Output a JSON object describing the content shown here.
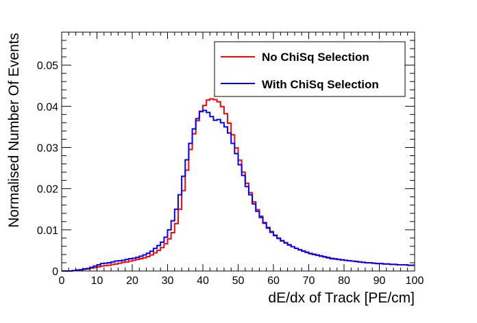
{
  "chart_data": {
    "type": "line",
    "title": "",
    "xlabel": "dE/dx of Track [PE/cm]",
    "ylabel": "Normalised Number Of Events",
    "xlim": [
      0,
      100
    ],
    "ylim": [
      0,
      0.058
    ],
    "x_ticks": [
      "0",
      "10",
      "20",
      "30",
      "40",
      "50",
      "60",
      "70",
      "80",
      "90",
      "100"
    ],
    "y_ticks": [
      "0",
      "0.01",
      "0.02",
      "0.03",
      "0.04",
      "0.05"
    ],
    "bin_width": 1,
    "grid": false,
    "legend_position": "top-right",
    "x": [
      0,
      1,
      2,
      3,
      4,
      5,
      6,
      7,
      8,
      9,
      10,
      11,
      12,
      13,
      14,
      15,
      16,
      17,
      18,
      19,
      20,
      21,
      22,
      23,
      24,
      25,
      26,
      27,
      28,
      29,
      30,
      31,
      32,
      33,
      34,
      35,
      36,
      37,
      38,
      39,
      40,
      41,
      42,
      43,
      44,
      45,
      46,
      47,
      48,
      49,
      50,
      51,
      52,
      53,
      54,
      55,
      56,
      57,
      58,
      59,
      60,
      61,
      62,
      63,
      64,
      65,
      66,
      67,
      68,
      69,
      70,
      71,
      72,
      73,
      74,
      75,
      76,
      77,
      78,
      79,
      80,
      81,
      82,
      83,
      84,
      85,
      86,
      87,
      88,
      89,
      90,
      91,
      92,
      93,
      94,
      95,
      96,
      97,
      98,
      99
    ],
    "series": [
      {
        "name": "No ChiSq Selection",
        "color": "#ff0000",
        "style": "step",
        "values": [
          0,
          0,
          0,
          0.0001,
          0.0002,
          0.0003,
          0.0004,
          0.0005,
          0.0007,
          0.0008,
          0.001,
          0.0012,
          0.0013,
          0.0014,
          0.0016,
          0.0017,
          0.0019,
          0.0021,
          0.0022,
          0.0024,
          0.0026,
          0.0028,
          0.003,
          0.0032,
          0.0035,
          0.0039,
          0.0044,
          0.005,
          0.0057,
          0.0066,
          0.0078,
          0.0093,
          0.0115,
          0.015,
          0.0195,
          0.0245,
          0.0295,
          0.0333,
          0.0365,
          0.0388,
          0.0402,
          0.0415,
          0.0418,
          0.0416,
          0.0411,
          0.0399,
          0.0382,
          0.0359,
          0.0331,
          0.0299,
          0.0269,
          0.024,
          0.0213,
          0.019,
          0.0168,
          0.0149,
          0.0133,
          0.0118,
          0.0106,
          0.0096,
          0.0087,
          0.008,
          0.0074,
          0.0069,
          0.0064,
          0.0059,
          0.0055,
          0.0052,
          0.0049,
          0.0046,
          0.0043,
          0.0041,
          0.0039,
          0.0037,
          0.0035,
          0.0033,
          0.0031,
          0.003,
          0.0028,
          0.0027,
          0.0026,
          0.0025,
          0.0024,
          0.0023,
          0.0022,
          0.0021,
          0.002,
          0.002,
          0.0019,
          0.0018,
          0.0018,
          0.0017,
          0.0017,
          0.0016,
          0.0016,
          0.0015,
          0.0015,
          0.0015,
          0.0014,
          0.0014
        ]
      },
      {
        "name": "With ChiSq Selection",
        "color": "#0000ff",
        "style": "step",
        "values": [
          0,
          0,
          0,
          0.0001,
          0.0002,
          0.0003,
          0.0005,
          0.0006,
          0.0009,
          0.0012,
          0.0015,
          0.0018,
          0.0019,
          0.002,
          0.0022,
          0.0024,
          0.0025,
          0.0026,
          0.0028,
          0.003,
          0.0031,
          0.0033,
          0.0036,
          0.0039,
          0.0043,
          0.0048,
          0.0055,
          0.0062,
          0.007,
          0.0082,
          0.01,
          0.0122,
          0.015,
          0.0185,
          0.023,
          0.027,
          0.031,
          0.0345,
          0.037,
          0.0387,
          0.039,
          0.0385,
          0.0375,
          0.0366,
          0.0368,
          0.036,
          0.035,
          0.0335,
          0.031,
          0.0285,
          0.0258,
          0.0232,
          0.0205,
          0.0185,
          0.0163,
          0.0145,
          0.013,
          0.0116,
          0.0104,
          0.0094,
          0.0086,
          0.0079,
          0.0073,
          0.0068,
          0.0063,
          0.0059,
          0.0055,
          0.0051,
          0.0048,
          0.0045,
          0.0042,
          0.004,
          0.0038,
          0.0036,
          0.0034,
          0.0032,
          0.003,
          0.0029,
          0.0028,
          0.0027,
          0.0026,
          0.0025,
          0.0024,
          0.0023,
          0.0022,
          0.0021,
          0.002,
          0.002,
          0.0019,
          0.0018,
          0.0018,
          0.0017,
          0.0017,
          0.0016,
          0.0016,
          0.0015,
          0.0015,
          0.0015,
          0.0014,
          0.0014
        ]
      }
    ]
  }
}
